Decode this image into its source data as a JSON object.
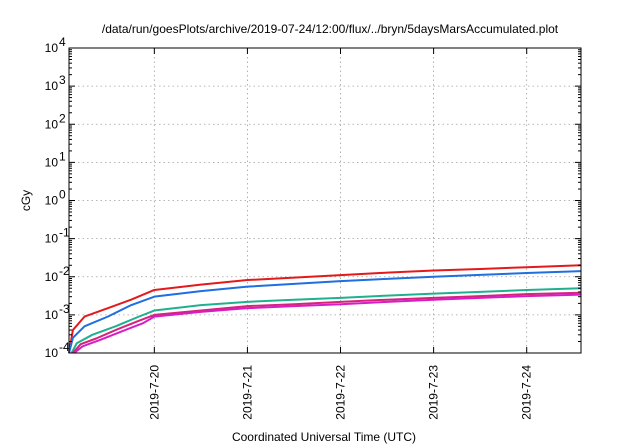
{
  "chart_data": {
    "type": "line",
    "title": "/data/run/goesPlots/archive/2019-07-24/12:00/flux/../bryn/5daysMarsAccumulated.plot",
    "xlabel": "Coordinated Universal Time (UTC)",
    "ylabel": "cGy",
    "y_scale": "log",
    "ylim_exponents": [
      -4,
      4
    ],
    "y_tick_base": "10",
    "y_tick_exponents": [
      "-4",
      "-3",
      "-2",
      "-1",
      "0",
      "1",
      "2",
      "3",
      "4"
    ],
    "xlim": [
      "2019-07-19 02:00",
      "2019-07-24 14:00"
    ],
    "x_ticks": [
      "2019-7-20",
      "2019-7-21",
      "2019-7-22",
      "2019-7-23",
      "2019-7-24"
    ],
    "grid": true,
    "legend": "none",
    "series": [
      {
        "color": "#e31a1c",
        "points": [
          [
            "2019-07-19 02:00",
            0.0001
          ],
          [
            "2019-07-19 03:00",
            0.0004
          ],
          [
            "2019-07-19 06:00",
            0.0009
          ],
          [
            "2019-07-19 12:00",
            0.0015
          ],
          [
            "2019-07-19 18:00",
            0.0025
          ],
          [
            "2019-07-20 00:00",
            0.0045
          ],
          [
            "2019-07-20 12:00",
            0.0062
          ],
          [
            "2019-07-21 00:00",
            0.0082
          ],
          [
            "2019-07-21 12:00",
            0.0095
          ],
          [
            "2019-07-22 00:00",
            0.011
          ],
          [
            "2019-07-22 12:00",
            0.0128
          ],
          [
            "2019-07-23 00:00",
            0.0146
          ],
          [
            "2019-07-23 12:00",
            0.016
          ],
          [
            "2019-07-24 00:00",
            0.0178
          ],
          [
            "2019-07-24 14:00",
            0.02
          ]
        ]
      },
      {
        "color": "#1f6fe0",
        "points": [
          [
            "2019-07-19 02:00",
            0.0001
          ],
          [
            "2019-07-19 03:00",
            0.00025
          ],
          [
            "2019-07-19 06:00",
            0.0005
          ],
          [
            "2019-07-19 12:00",
            0.0009
          ],
          [
            "2019-07-19 18:00",
            0.0018
          ],
          [
            "2019-07-20 00:00",
            0.003
          ],
          [
            "2019-07-20 12:00",
            0.0042
          ],
          [
            "2019-07-21 00:00",
            0.0055
          ],
          [
            "2019-07-21 12:00",
            0.0065
          ],
          [
            "2019-07-22 00:00",
            0.0077
          ],
          [
            "2019-07-22 12:00",
            0.0088
          ],
          [
            "2019-07-23 00:00",
            0.01
          ],
          [
            "2019-07-23 12:00",
            0.0112
          ],
          [
            "2019-07-24 00:00",
            0.0125
          ],
          [
            "2019-07-24 14:00",
            0.014
          ]
        ]
      },
      {
        "color": "#20b090",
        "points": [
          [
            "2019-07-19 02:40",
            0.0001
          ],
          [
            "2019-07-19 04:00",
            0.00018
          ],
          [
            "2019-07-19 08:00",
            0.0003
          ],
          [
            "2019-07-19 14:00",
            0.0005
          ],
          [
            "2019-07-19 20:00",
            0.0009
          ],
          [
            "2019-07-20 00:00",
            0.0013
          ],
          [
            "2019-07-20 12:00",
            0.0018
          ],
          [
            "2019-07-21 00:00",
            0.0022
          ],
          [
            "2019-07-21 12:00",
            0.0025
          ],
          [
            "2019-07-22 00:00",
            0.0028
          ],
          [
            "2019-07-22 12:00",
            0.0032
          ],
          [
            "2019-07-23 00:00",
            0.0036
          ],
          [
            "2019-07-23 12:00",
            0.004
          ],
          [
            "2019-07-24 00:00",
            0.0045
          ],
          [
            "2019-07-24 14:00",
            0.005
          ]
        ]
      },
      {
        "color": "#d6227a",
        "points": [
          [
            "2019-07-19 03:00",
            0.0001
          ],
          [
            "2019-07-19 05:00",
            0.00017
          ],
          [
            "2019-07-19 09:00",
            0.00024
          ],
          [
            "2019-07-19 14:00",
            0.0004
          ],
          [
            "2019-07-19 20:00",
            0.0007
          ],
          [
            "2019-07-20 00:00",
            0.001
          ],
          [
            "2019-07-20 12:00",
            0.0013
          ],
          [
            "2019-07-21 00:00",
            0.0017
          ],
          [
            "2019-07-21 12:00",
            0.0019
          ],
          [
            "2019-07-22 00:00",
            0.0022
          ],
          [
            "2019-07-22 12:00",
            0.0025
          ],
          [
            "2019-07-23 00:00",
            0.0028
          ],
          [
            "2019-07-23 12:00",
            0.0031
          ],
          [
            "2019-07-24 00:00",
            0.0035
          ],
          [
            "2019-07-24 14:00",
            0.0038
          ]
        ]
      },
      {
        "color": "#d61ec8",
        "points": [
          [
            "2019-07-19 03:20",
            0.0001
          ],
          [
            "2019-07-19 05:30",
            0.00015
          ],
          [
            "2019-07-19 10:00",
            0.00022
          ],
          [
            "2019-07-19 15:00",
            0.00035
          ],
          [
            "2019-07-19 21:00",
            0.0006
          ],
          [
            "2019-07-20 00:00",
            0.0009
          ],
          [
            "2019-07-20 12:00",
            0.0012
          ],
          [
            "2019-07-21 00:00",
            0.0015
          ],
          [
            "2019-07-21 12:00",
            0.0017
          ],
          [
            "2019-07-22 00:00",
            0.0019
          ],
          [
            "2019-07-22 12:00",
            0.0022
          ],
          [
            "2019-07-23 00:00",
            0.0025
          ],
          [
            "2019-07-23 12:00",
            0.0028
          ],
          [
            "2019-07-24 00:00",
            0.0031
          ],
          [
            "2019-07-24 14:00",
            0.0034
          ]
        ]
      }
    ]
  }
}
